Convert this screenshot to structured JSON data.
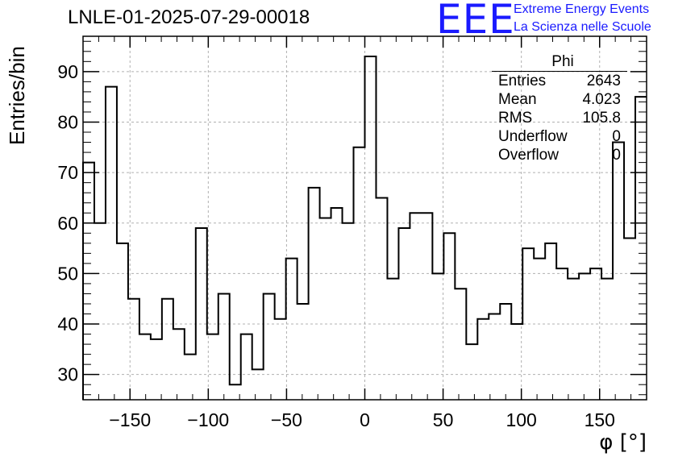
{
  "chart_data": {
    "type": "histogram",
    "title": "LNLE-01-2025-07-29-00018",
    "xlabel": "φ [°]",
    "ylabel": "Entries/bin",
    "xlim": [
      -180,
      180
    ],
    "ylim": [
      25,
      97
    ],
    "grid": true,
    "bin_width": 7.2,
    "x_ticks": [
      -150,
      -100,
      -50,
      0,
      50,
      100,
      150
    ],
    "x_tick_labels": [
      "−150",
      "−100",
      "−50",
      "0",
      "50",
      "100",
      "150"
    ],
    "y_ticks": [
      30,
      40,
      50,
      60,
      70,
      80,
      90
    ],
    "y_tick_labels": [
      "30",
      "40",
      "50",
      "60",
      "70",
      "80",
      "90"
    ],
    "values": [
      72,
      60,
      87,
      56,
      45,
      38,
      37,
      45,
      39,
      34,
      59,
      38,
      46,
      28,
      38,
      31,
      46,
      41,
      53,
      44,
      67,
      61,
      63,
      60,
      75,
      93,
      65,
      49,
      59,
      62,
      62,
      50,
      58,
      47,
      36,
      41,
      42,
      44,
      40,
      55,
      53,
      56,
      51,
      49,
      50,
      51,
      49,
      76,
      57,
      85
    ],
    "stats_box": {
      "name": "Phi",
      "entries_label": "Entries",
      "entries": "2643",
      "mean_label": "Mean",
      "mean": "4.023",
      "rms_label": "RMS",
      "rms": "105.8",
      "underflow_label": "Underflow",
      "underflow": "0",
      "overflow_label": "Overflow",
      "overflow": "0"
    }
  },
  "logo": {
    "mark": "EEE",
    "line1": "Extreme Energy Events",
    "line2": "La Scienza nelle Scuole",
    "color": "#1a1aff"
  }
}
